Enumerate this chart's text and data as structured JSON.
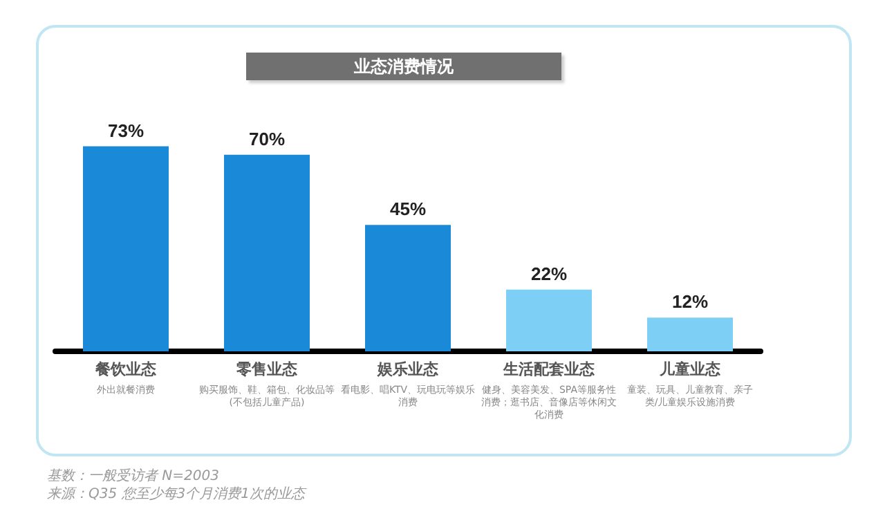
{
  "chart_data": {
    "type": "bar",
    "title": "业态消费情况",
    "categories": [
      "餐饮业态",
      "零售业态",
      "娱乐业态",
      "生活配套业态",
      "儿童业态"
    ],
    "values": [
      73,
      70,
      45,
      22,
      12
    ],
    "value_labels": [
      "73%",
      "70%",
      "45%",
      "22%",
      "12%"
    ],
    "colors": [
      "#1a8ad8",
      "#1a8ad8",
      "#1a8ad8",
      "#7ecff5",
      "#7ecff5"
    ],
    "tick_labels": "x",
    "annotations": [
      "外出就餐消费",
      "购买服饰、鞋、箱包、化妆品等(不包括儿童产品)",
      "看电影、唱KTV、玩电玩等娱乐消费",
      "健身、美容美发、SPA等服务性消费；逛书店、音像店等休闲文化消费",
      "童装、玩具、儿童教育、亲子类/儿童娱乐设施消费",
      "基数：一般受访者 N=2003",
      "来源：Q35 您至少每3个月消费1次的业态"
    ]
  }
}
